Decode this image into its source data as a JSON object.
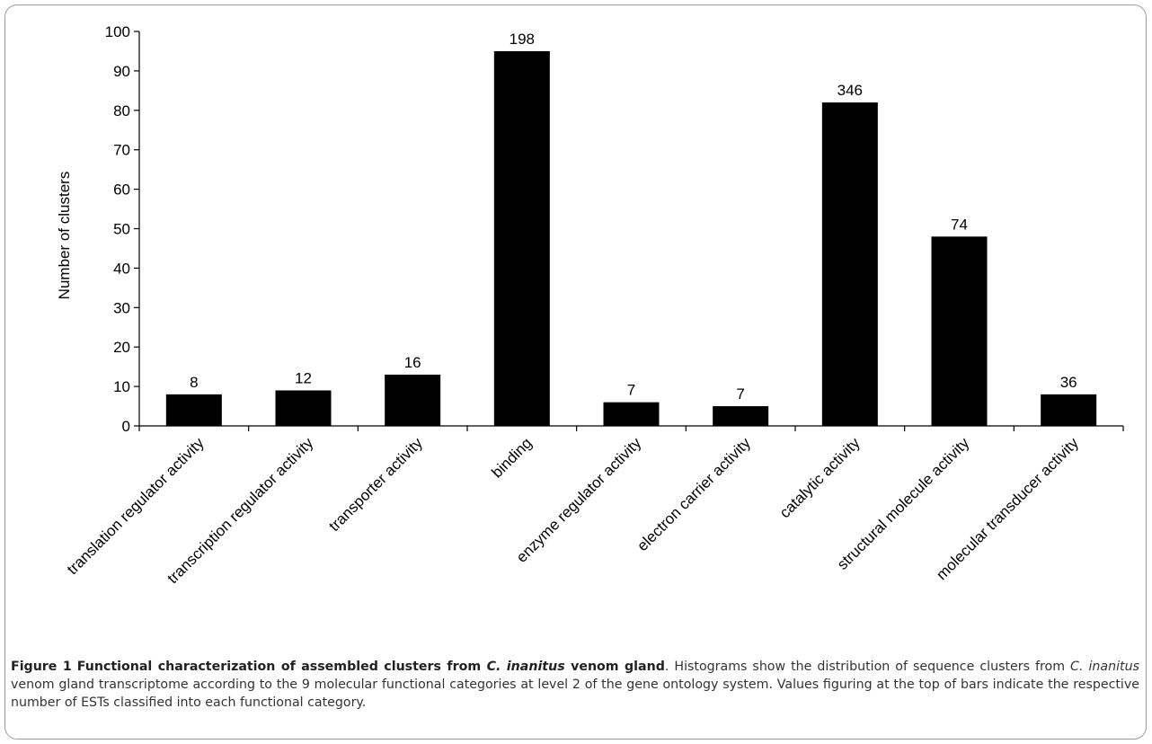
{
  "chart_data": {
    "type": "bar",
    "categories": [
      "translation regulator activity",
      "transcription regulator activity",
      "transporter activity",
      "binding",
      "enzyme regulator activity",
      "electron carrier activity",
      "catalytic activity",
      "structural molecule activity",
      "molecular transducer activity"
    ],
    "values": [
      8,
      9,
      13,
      95,
      6,
      5,
      82,
      48,
      8
    ],
    "data_labels": [
      "8",
      "12",
      "16",
      "198",
      "7",
      "7",
      "346",
      "74",
      "36"
    ],
    "ylabel": "Number of clusters",
    "ylim": [
      0,
      100
    ],
    "yticks": [
      0,
      10,
      20,
      30,
      40,
      50,
      60,
      70,
      80,
      90,
      100
    ],
    "bar_color": "#000000",
    "grid": false,
    "legend": "none"
  },
  "caption": {
    "figure_label": "Figure 1",
    "title_part1": "Functional characterization of assembled clusters from ",
    "title_species": "C. inanitus",
    "title_part2": " venom gland",
    "title_end": ".",
    "body_part1": " Histograms show the distribution of sequence clusters from ",
    "body_species": "C. inanitus",
    "body_part2": " venom gland transcriptome according to the 9 molecular functional categories at level 2 of the gene ontology system. Values figuring at the top of bars indicate the respective number of ESTs classified into each functional category."
  }
}
